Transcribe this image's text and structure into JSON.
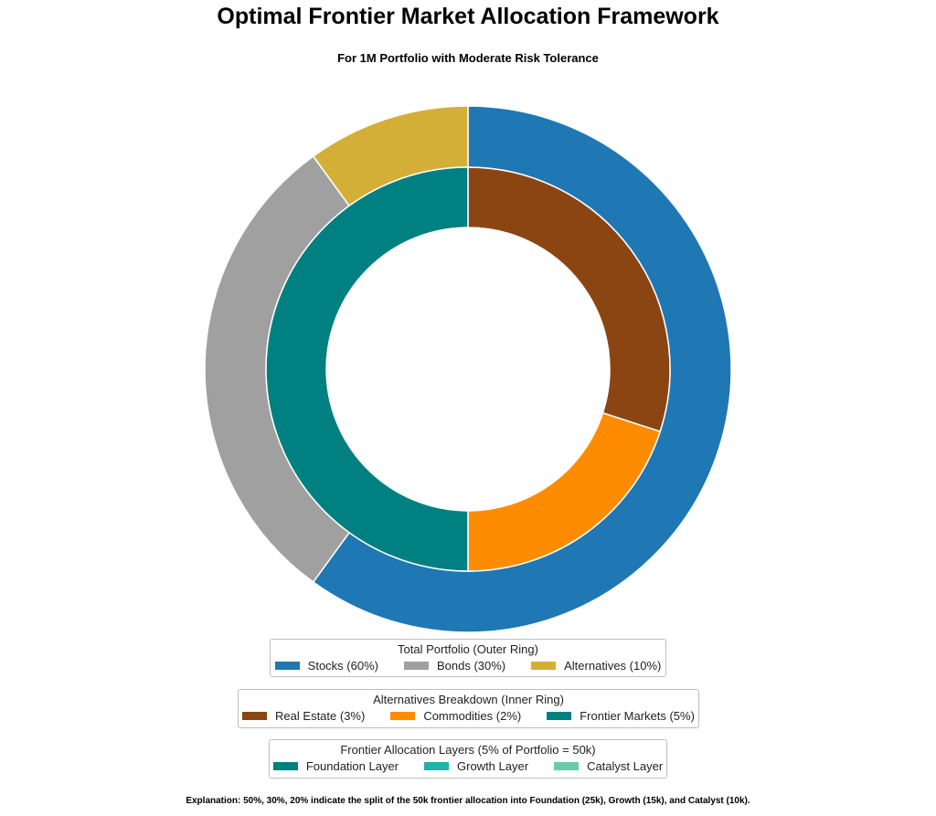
{
  "title": "Optimal Frontier Market Allocation Framework",
  "subtitle": "For 1M Portfolio with Moderate Risk Tolerance",
  "chart_data": {
    "type": "pie",
    "rings": [
      {
        "name": "outer",
        "slices": [
          {
            "label": "Stocks",
            "value": 60,
            "color": "#1f77b4"
          },
          {
            "label": "Bonds",
            "value": 30,
            "color": "#a0a0a0"
          },
          {
            "label": "Alternatives",
            "value": 10,
            "color": "#d4af37"
          }
        ]
      },
      {
        "name": "inner",
        "slices": [
          {
            "label": "Real Estate",
            "value": 3,
            "color": "#8b4513"
          },
          {
            "label": "Commodities",
            "value": 2,
            "color": "#ff8c00"
          },
          {
            "label": "Frontier Markets",
            "value": 5,
            "color": "#008080"
          }
        ]
      }
    ],
    "layers": [
      {
        "label": "Foundation Layer",
        "share": 50,
        "amount": "25k",
        "color": "#00807f"
      },
      {
        "label": "Growth Layer",
        "share": 30,
        "amount": "15k",
        "color": "#20b2aa"
      },
      {
        "label": "Catalyst Layer",
        "share": 20,
        "amount": "10k",
        "color": "#66cdaa"
      }
    ]
  },
  "legends": [
    {
      "title": "Total Portfolio (Outer Ring)",
      "items": [
        {
          "label": "Stocks (60%)",
          "color": "#1f77b4"
        },
        {
          "label": "Bonds (30%)",
          "color": "#a0a0a0"
        },
        {
          "label": "Alternatives (10%)",
          "color": "#d4af37"
        }
      ]
    },
    {
      "title": "Alternatives Breakdown (Inner Ring)",
      "items": [
        {
          "label": "Real Estate (3%)",
          "color": "#8b4513"
        },
        {
          "label": "Commodities (2%)",
          "color": "#ff8c00"
        },
        {
          "label": "Frontier Markets (5%)",
          "color": "#008080"
        }
      ]
    },
    {
      "title": "Frontier Allocation Layers (5% of Portfolio = 50k)",
      "items": [
        {
          "label": "Foundation Layer",
          "color": "#00807f"
        },
        {
          "label": "Growth Layer",
          "color": "#20b2aa"
        },
        {
          "label": "Catalyst Layer",
          "color": "#66cdaa"
        }
      ]
    }
  ],
  "explanation": "Explanation: 50%, 30%, 20% indicate the split of the 50k frontier allocation into Foundation (25k), Growth (15k), and Catalyst (10k)."
}
